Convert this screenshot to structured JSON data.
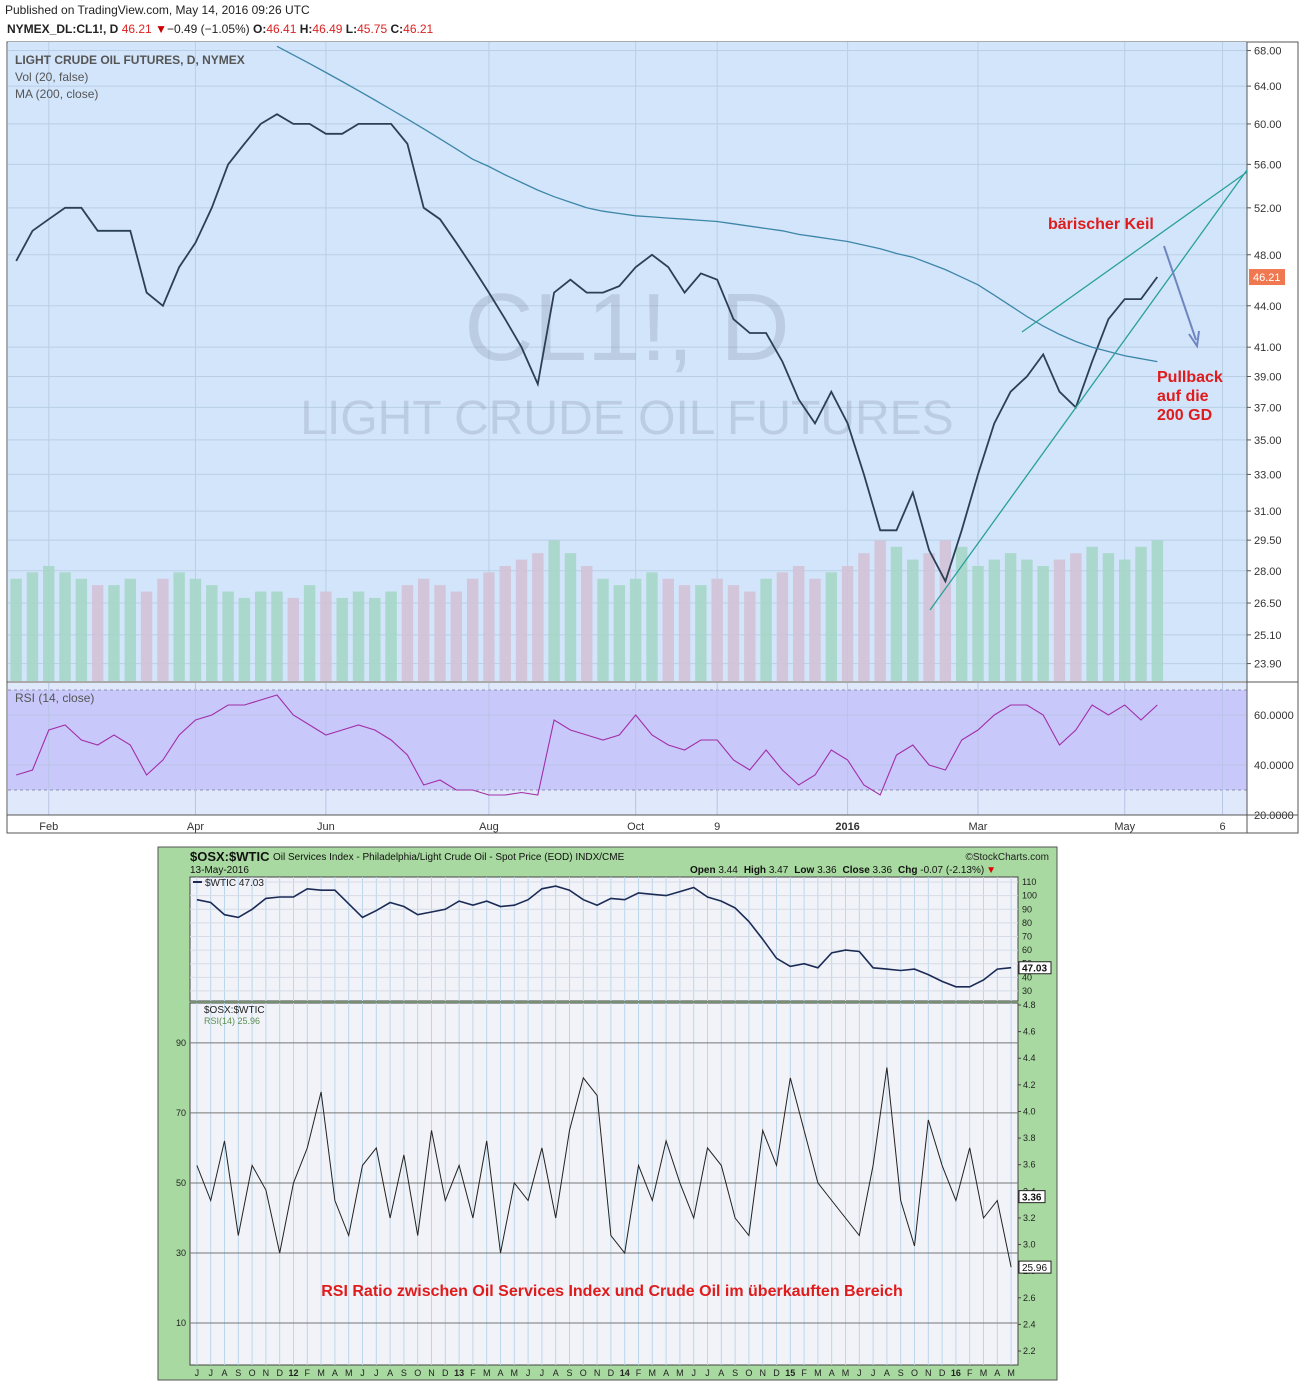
{
  "header": {
    "published": "Published on TradingView.com, May 14, 2016 09:26 UTC",
    "symbol": "NYMEX_DL:CL1!, D",
    "last": "46.21",
    "arrow": "▼",
    "change": "−0.49 (−1.05%)",
    "o_label": "O:",
    "o": "46.41",
    "h_label": "H:",
    "h": "46.49",
    "l_label": "L:",
    "l": "45.75",
    "c_label": "C:",
    "c": "46.21"
  },
  "chart_data": [
    {
      "type": "line",
      "title": "LIGHT CRUDE OIL FUTURES, D, NYMEX",
      "watermark": [
        "CL1!, D",
        "LIGHT CRUDE OIL FUTURES"
      ],
      "log_scale": true,
      "grid": true,
      "categories": [
        null,
        null,
        "Feb",
        null,
        null,
        null,
        null,
        null,
        null,
        null,
        null,
        "Apr",
        null,
        null,
        null,
        null,
        null,
        null,
        null,
        "Jun",
        null,
        null,
        null,
        null,
        null,
        null,
        null,
        null,
        null,
        "Aug",
        null,
        null,
        null,
        null,
        null,
        null,
        null,
        null,
        "Oct",
        null,
        null,
        null,
        null,
        "9",
        null,
        null,
        null,
        null,
        null,
        null,
        null,
        "2016",
        null,
        null,
        null,
        null,
        null,
        null,
        null,
        "Mar",
        null,
        null,
        null,
        null,
        null,
        null,
        null,
        null,
        "May",
        null,
        null,
        null,
        null,
        null,
        "6",
        null
      ],
      "series": [
        {
          "color": "#2b3f55",
          "values": [
            47.5,
            50,
            51,
            52,
            52,
            50,
            50,
            50,
            45,
            44,
            47,
            49,
            52,
            56,
            58,
            60,
            61,
            60,
            60,
            59,
            59,
            60,
            60,
            60,
            58,
            52,
            51,
            49,
            47,
            45,
            43,
            41,
            38.5,
            45,
            46,
            45,
            45,
            45.5,
            47,
            48,
            47,
            45,
            46.5,
            46,
            43,
            42,
            42,
            40,
            37.5,
            36,
            38,
            36,
            33,
            30,
            30,
            32,
            29,
            27.5,
            30,
            33,
            36,
            38,
            39,
            40.5,
            38,
            37,
            40,
            43,
            44.5,
            44.5,
            46.21,
            null,
            null,
            null,
            null,
            null
          ]
        },
        {
          "name": "MA (200, close)",
          "color": "#3d86a8",
          "values": [
            null,
            null,
            null,
            null,
            null,
            null,
            null,
            null,
            null,
            null,
            null,
            null,
            null,
            null,
            null,
            null,
            68.5,
            67.5,
            66.5,
            65.5,
            64.5,
            63.5,
            62.5,
            61.5,
            60.5,
            59.5,
            58.5,
            57.5,
            56.5,
            55.8,
            55,
            54.3,
            53.6,
            53,
            52.5,
            52,
            51.7,
            51.5,
            51.3,
            51.2,
            51.1,
            51,
            50.9,
            50.8,
            50.6,
            50.4,
            50.2,
            50,
            49.7,
            49.5,
            49.3,
            49.1,
            48.8,
            48.5,
            48.1,
            47.8,
            47.3,
            46.8,
            46.2,
            45.6,
            44.8,
            44,
            43.2,
            42.5,
            41.9,
            41.4,
            41,
            40.7,
            40.4,
            40.2,
            40,
            null,
            null,
            null,
            null,
            null
          ]
        },
        {
          "name": "Vol (20, false)",
          "axis": "volume",
          "up_color": "#a6d6c6",
          "down_color": "#d4c2d6",
          "values": [
            16,
            17,
            18,
            17,
            16,
            15,
            15,
            16,
            14,
            16,
            17,
            16,
            15,
            14,
            13,
            14,
            14,
            13,
            15,
            14,
            13,
            14,
            13,
            14,
            15,
            16,
            15,
            14,
            16,
            17,
            18,
            19,
            20,
            22,
            20,
            18,
            16,
            15,
            16,
            17,
            16,
            15,
            15,
            16,
            15,
            14,
            16,
            17,
            18,
            16,
            17,
            18,
            20,
            22,
            21,
            19,
            20,
            22,
            21,
            18,
            19,
            20,
            19,
            18,
            19,
            20,
            21,
            20,
            19,
            21,
            22,
            null,
            null,
            null,
            null,
            null
          ]
        }
      ],
      "vlim": [
        0,
        100
      ],
      "ylim": [
        23.2,
        69.0
      ],
      "yticks": [
        {
          "value": 23.9,
          "label": "23.90"
        },
        {
          "value": 25.1,
          "label": "25.10"
        },
        {
          "value": 26.5,
          "label": "26.50"
        },
        {
          "value": 28,
          "label": "28.00"
        },
        {
          "value": 29.5,
          "label": "29.50"
        },
        {
          "value": 31,
          "label": "31.00"
        },
        {
          "value": 33,
          "label": "33.00"
        },
        {
          "value": 35,
          "label": "35.00"
        },
        {
          "value": 37,
          "label": "37.00"
        },
        {
          "value": 39,
          "label": "39.00"
        },
        {
          "value": 41,
          "label": "41.00"
        },
        {
          "value": 44,
          "label": "44.00"
        },
        {
          "value": 48,
          "label": "48.00"
        },
        {
          "value": 52,
          "label": "52.00"
        },
        {
          "value": 56,
          "label": "56.00"
        },
        {
          "value": 60,
          "label": "60.00"
        },
        {
          "value": 64,
          "label": "64.00"
        },
        {
          "value": 68,
          "label": "68.00"
        }
      ],
      "rsi": {
        "name": "RSI (14, close)",
        "color": "#a22ea8",
        "band": [
          30,
          70
        ],
        "ylim": [
          20,
          72.8
        ],
        "yticks": [
          {
            "value": 20,
            "label": "20.0000"
          },
          {
            "value": 40,
            "label": "40.0000"
          },
          {
            "value": 60,
            "label": "60.0000"
          }
        ],
        "values": [
          36,
          38,
          54,
          56,
          50,
          48,
          52,
          48,
          36,
          42,
          52,
          58,
          60,
          64,
          64,
          66,
          68,
          60,
          56,
          52,
          54,
          56,
          54,
          50,
          44,
          32,
          34,
          30,
          30,
          28,
          28,
          29,
          28,
          58,
          54,
          52,
          50,
          52,
          60,
          52,
          48,
          46,
          50,
          50,
          42,
          38,
          46,
          38,
          32,
          36,
          46,
          42,
          32,
          28,
          44,
          48,
          40,
          38,
          50,
          54,
          60,
          64,
          64,
          60,
          48,
          54,
          64,
          60,
          64,
          58,
          64,
          null,
          null,
          null,
          null,
          null
        ]
      },
      "annotations": [
        "bärischer Keil",
        "Pullback",
        "auf die",
        "200 GD"
      ]
    },
    {
      "type": "line",
      "title": "$OSX:$WTIC",
      "subtitle": "Oil Services Index - Philadelphia/Light Crude Oil - Spot Price (EOD) INDX/CME",
      "source": "©StockCharts.com",
      "date": "13-May-2016",
      "quote": [
        {
          "label": "Open",
          "value": 3.44
        },
        {
          "label": "High",
          "value": 3.47
        },
        {
          "label": "Low",
          "value": 3.36
        },
        {
          "label": "Close",
          "value": 3.36
        },
        {
          "label": "Chg",
          "value": "-0.07 (-2.13%)"
        }
      ],
      "chg_arrow": "▼",
      "categories": [
        "J",
        "J",
        "A",
        "S",
        "O",
        "N",
        "D",
        "12",
        "F",
        "M",
        "A",
        "M",
        "J",
        "J",
        "A",
        "S",
        "O",
        "N",
        "D",
        "13",
        "F",
        "M",
        "A",
        "M",
        "J",
        "J",
        "A",
        "S",
        "O",
        "N",
        "D",
        "14",
        "F",
        "M",
        "A",
        "M",
        "J",
        "J",
        "A",
        "S",
        "O",
        "N",
        "D",
        "15",
        "F",
        "M",
        "A",
        "M",
        "J",
        "J",
        "A",
        "S",
        "O",
        "N",
        "D",
        "16",
        "F",
        "M",
        "A",
        "M"
      ],
      "series": [
        {
          "name": "$WTIC",
          "color": "#1b2b55",
          "values": [
            97,
            95,
            86,
            84,
            90,
            98,
            99,
            99,
            105,
            104,
            104,
            94,
            84,
            89,
            95,
            92,
            86,
            88,
            90,
            96,
            93,
            96,
            92,
            93,
            97,
            105,
            107,
            104,
            97,
            93,
            98,
            97,
            102,
            101,
            100,
            103,
            106,
            99,
            96,
            91,
            81,
            68,
            54,
            48,
            50,
            47,
            58,
            60,
            59,
            47,
            46,
            45,
            46,
            42,
            37,
            33,
            33,
            38,
            46,
            47.03
          ]
        }
      ],
      "ylim": [
        22.6,
        113.7
      ],
      "yticks": [
        30,
        40,
        50,
        60,
        70,
        80,
        90,
        100,
        110
      ],
      "rsi": {
        "name": "RSI(14)",
        "color": "#222222",
        "values": [
          55,
          45,
          62,
          35,
          55,
          48,
          30,
          50,
          60,
          76,
          45,
          35,
          55,
          60,
          40,
          58,
          35,
          65,
          45,
          55,
          40,
          62,
          30,
          50,
          45,
          60,
          40,
          65,
          80,
          75,
          35,
          30,
          55,
          45,
          62,
          50,
          40,
          60,
          55,
          40,
          35,
          65,
          55,
          80,
          65,
          50,
          45,
          40,
          35,
          55,
          83,
          45,
          32,
          68,
          55,
          45,
          60,
          40,
          45,
          25.96
        ],
        "ylim": [
          -2,
          101.4
        ],
        "yticks": [
          10,
          30,
          50,
          70,
          90
        ],
        "y2lim": [
          2.095,
          4.815
        ],
        "y2ticks": [
          2.2,
          2.4,
          2.6,
          2.8,
          {
            "value": 3,
            "label": "3.0"
          },
          3.2,
          3.4,
          3.6,
          3.8,
          {
            "value": 4,
            "label": "4.0"
          },
          4.2,
          4.4,
          4.6,
          4.8
        ]
      },
      "annotation": "RSI Ratio zwischen Oil Services Index und Crude Oil im überkauften Bereich"
    }
  ]
}
